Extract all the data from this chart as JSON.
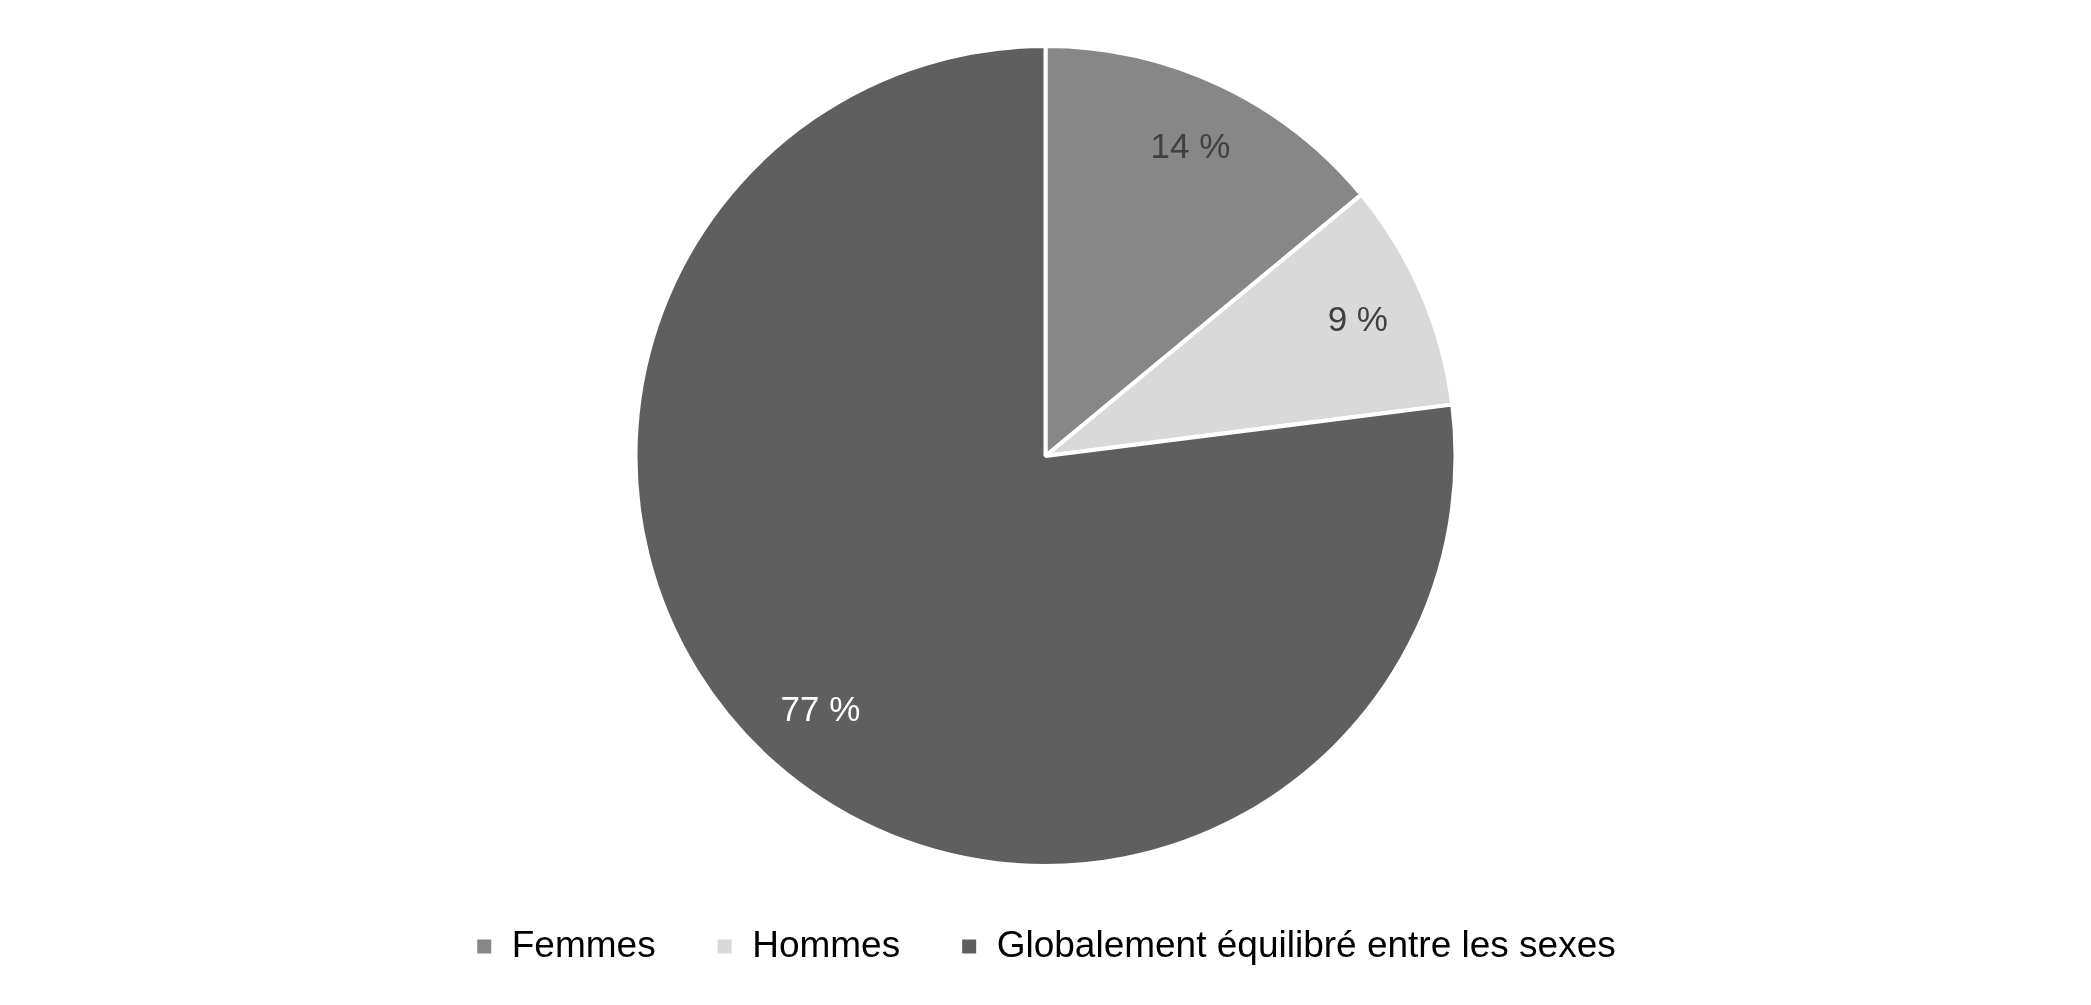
{
  "chart_data": {
    "type": "pie",
    "categories": [
      "Femmes",
      "Hommes",
      "Globalement équilibré entre les sexes"
    ],
    "values": [
      14,
      9,
      77
    ],
    "colors": [
      "#878787",
      "#d9d9d9",
      "#5f5f5f"
    ],
    "value_labels": [
      "14 %",
      "9 %",
      "77 %"
    ],
    "legend": "bottom"
  }
}
